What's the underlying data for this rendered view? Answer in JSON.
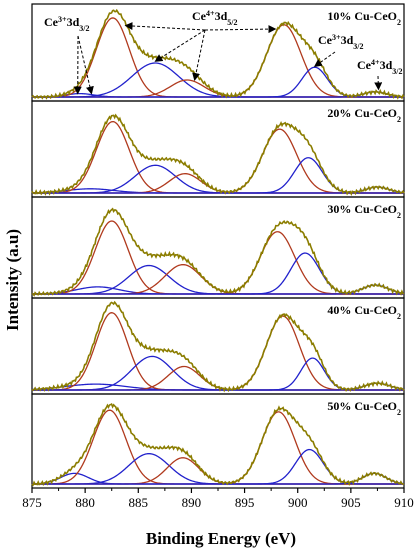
{
  "chart_data": {
    "type": "line",
    "xlabel": "Binding Energy (eV)",
    "ylabel": "Intensity (a.u)",
    "xlim": [
      875,
      910
    ],
    "xticks": [
      875,
      880,
      885,
      890,
      895,
      900,
      905,
      910
    ],
    "colors": {
      "envelope": "#8b7d00",
      "ce3": "#b03a1e",
      "ce4": "#2222cc",
      "axis": "#000000",
      "annotation": "#000000"
    },
    "panels": [
      {
        "label": "10% Cu-CeO",
        "label_sub": "2",
        "components": [
          {
            "series": "ce4",
            "center": 879.5,
            "width": 1.3,
            "height": 0.04
          },
          {
            "series": "ce3",
            "center": 882.6,
            "width": 1.55,
            "height": 0.93
          },
          {
            "series": "ce4",
            "center": 886.6,
            "width": 2.2,
            "height": 0.4
          },
          {
            "series": "ce3",
            "center": 889.6,
            "width": 1.6,
            "height": 0.2
          },
          {
            "series": "ce3",
            "center": 898.7,
            "width": 1.6,
            "height": 0.85
          },
          {
            "series": "ce4",
            "center": 901.6,
            "width": 1.2,
            "height": 0.35
          },
          {
            "series": "ce4",
            "center": 907.3,
            "width": 1.1,
            "height": 0.06
          }
        ]
      },
      {
        "label": "20% Cu-CeO",
        "label_sub": "2",
        "components": [
          {
            "series": "ce4",
            "center": 880.5,
            "width": 2.2,
            "height": 0.05
          },
          {
            "series": "ce3",
            "center": 882.6,
            "width": 1.55,
            "height": 0.85
          },
          {
            "series": "ce4",
            "center": 886.6,
            "width": 1.9,
            "height": 0.33
          },
          {
            "series": "ce3",
            "center": 889.4,
            "width": 1.5,
            "height": 0.23
          },
          {
            "series": "ce3",
            "center": 898.3,
            "width": 1.6,
            "height": 0.76
          },
          {
            "series": "ce4",
            "center": 901.0,
            "width": 1.3,
            "height": 0.42
          },
          {
            "series": "ce4",
            "center": 907.5,
            "width": 1.1,
            "height": 0.07
          }
        ]
      },
      {
        "label": "30% Cu-CeO",
        "label_sub": "2",
        "components": [
          {
            "series": "ce4",
            "center": 881.2,
            "width": 2.0,
            "height": 0.08
          },
          {
            "series": "ce3",
            "center": 882.5,
            "width": 1.55,
            "height": 0.82
          },
          {
            "series": "ce4",
            "center": 886.0,
            "width": 1.9,
            "height": 0.32
          },
          {
            "series": "ce3",
            "center": 889.2,
            "width": 1.7,
            "height": 0.33
          },
          {
            "series": "ce3",
            "center": 898.1,
            "width": 1.6,
            "height": 0.7
          },
          {
            "series": "ce4",
            "center": 900.7,
            "width": 1.35,
            "height": 0.46
          },
          {
            "series": "ce4",
            "center": 907.3,
            "width": 1.2,
            "height": 0.1
          }
        ]
      },
      {
        "label": "40% Cu-CeO",
        "label_sub": "2",
        "components": [
          {
            "series": "ce4",
            "center": 881.0,
            "width": 2.8,
            "height": 0.07
          },
          {
            "series": "ce3",
            "center": 882.5,
            "width": 1.5,
            "height": 0.92
          },
          {
            "series": "ce4",
            "center": 886.3,
            "width": 1.9,
            "height": 0.4
          },
          {
            "series": "ce3",
            "center": 889.3,
            "width": 1.5,
            "height": 0.28
          },
          {
            "series": "ce3",
            "center": 898.6,
            "width": 1.55,
            "height": 0.88
          },
          {
            "series": "ce4",
            "center": 901.4,
            "width": 1.1,
            "height": 0.38
          },
          {
            "series": "ce4",
            "center": 907.5,
            "width": 1.2,
            "height": 0.08
          }
        ]
      },
      {
        "label": "50% Cu-CeO",
        "label_sub": "2",
        "components": [
          {
            "series": "ce4",
            "center": 879.0,
            "width": 1.3,
            "height": 0.13
          },
          {
            "series": "ce3",
            "center": 882.3,
            "width": 1.55,
            "height": 0.9
          },
          {
            "series": "ce4",
            "center": 886.0,
            "width": 1.9,
            "height": 0.37
          },
          {
            "series": "ce3",
            "center": 889.2,
            "width": 1.5,
            "height": 0.32
          },
          {
            "series": "ce3",
            "center": 898.2,
            "width": 1.55,
            "height": 0.88
          },
          {
            "series": "ce4",
            "center": 901.1,
            "width": 1.3,
            "height": 0.42
          },
          {
            "series": "ce4",
            "center": 907.2,
            "width": 1.1,
            "height": 0.13
          }
        ]
      }
    ],
    "annotations": [
      {
        "name": "ce3-3d32-left",
        "text": "Ce",
        "sup": "3+",
        "text2": "3d",
        "sub": "3/2",
        "targets": [
          {
            "x": 879.3,
            "y": 0.04
          },
          {
            "x": 880.6,
            "y": 0.04
          }
        ]
      },
      {
        "name": "ce4-3d52",
        "text": "Ce",
        "sup": "4+",
        "text2": "3d",
        "sub": "5/2",
        "targets": [
          {
            "x": 883.8,
            "y": 0.84
          },
          {
            "x": 886.6,
            "y": 0.42
          },
          {
            "x": 890.3,
            "y": 0.2
          },
          {
            "x": 897.9,
            "y": 0.8
          }
        ]
      },
      {
        "name": "ce3-3d32-right",
        "text": "Ce",
        "sup": "3+",
        "text2": "3d",
        "sub": "3/2",
        "targets": [
          {
            "x": 901.6,
            "y": 0.36
          }
        ]
      },
      {
        "name": "ce4-3d32-right",
        "text": "Ce",
        "sup": "4+",
        "text2": "3d",
        "sub": "3/2",
        "targets": [
          {
            "x": 907.6,
            "y": 0.09
          }
        ]
      }
    ]
  }
}
